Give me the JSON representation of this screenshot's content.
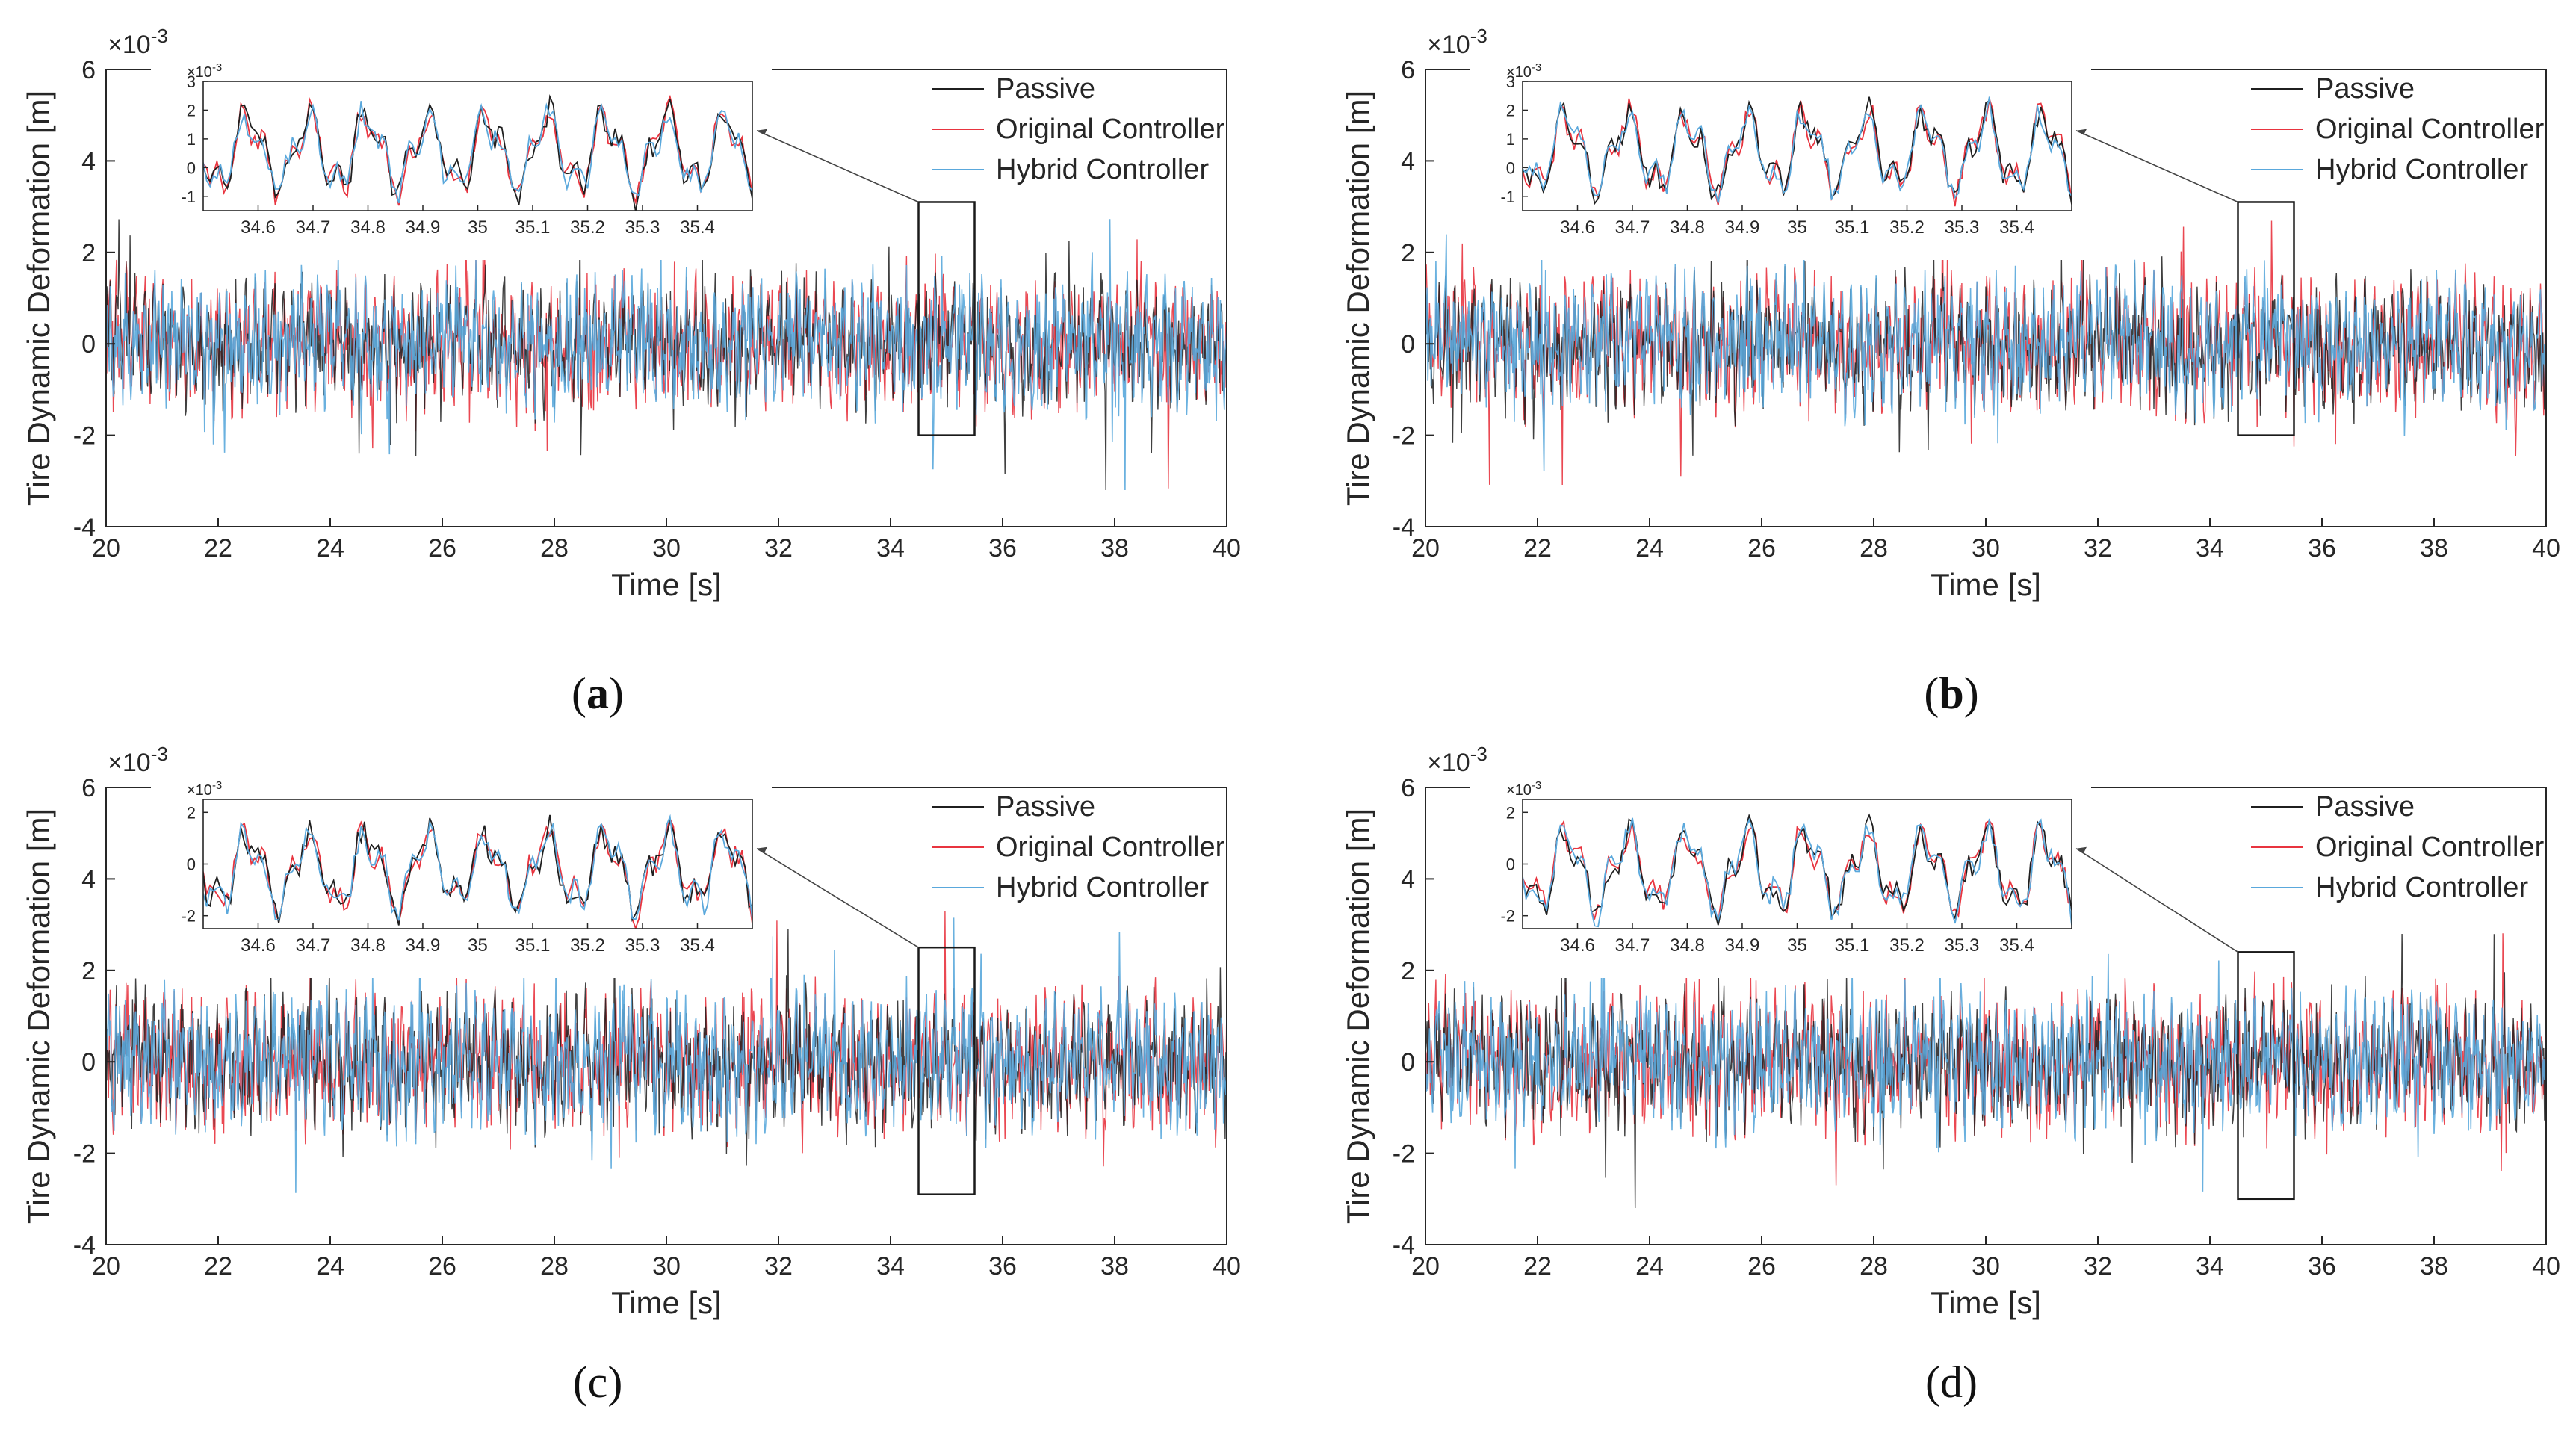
{
  "figure": {
    "panels": [
      {
        "caption_open": "(",
        "caption_letter": "a",
        "caption_close": ")"
      },
      {
        "caption_open": "(",
        "caption_letter": "b",
        "caption_close": ")"
      },
      {
        "caption_open": "(",
        "caption_letter": "c",
        "caption_close": ")"
      },
      {
        "caption_open": "(",
        "caption_letter": "d",
        "caption_close": ")"
      }
    ]
  },
  "colors": {
    "passive": "#1f1f1f",
    "original": "#e8343f",
    "hybrid": "#5aa8dc",
    "axis": "#262626",
    "zoom_box": "#1a1a1a"
  },
  "chart_data": [
    {
      "id": "a",
      "type": "line",
      "title": "",
      "xlabel": "Time [s]",
      "ylabel": "Tire Dynamic Deformation [m]",
      "y_scale_label": "×10-3",
      "xlim": [
        20,
        40
      ],
      "ylim": [
        -4,
        6
      ],
      "xticks": [
        20,
        22,
        24,
        26,
        28,
        30,
        32,
        34,
        36,
        38,
        40
      ],
      "yticks": [
        -4,
        -2,
        0,
        2,
        4,
        6
      ],
      "legend": [
        "Passive",
        "Original Controller",
        "Hybrid Controller"
      ],
      "legend_location": "top-right",
      "series": [
        {
          "name": "Passive",
          "amplitude": 0.75,
          "seed": 11
        },
        {
          "name": "Original Controller",
          "amplitude": 0.85,
          "seed": 12
        },
        {
          "name": "Hybrid Controller",
          "amplitude": 0.8,
          "seed": 13
        }
      ],
      "zoom_region": {
        "x": [
          34.5,
          35.5
        ],
        "y": [
          -2.0,
          3.1
        ]
      },
      "inset": {
        "xlim": [
          34.5,
          35.5
        ],
        "ylim": [
          -1.5,
          3
        ],
        "xticks": [
          34.6,
          34.7,
          34.8,
          34.9,
          35,
          35.1,
          35.2,
          35.3,
          35.4
        ],
        "yticks": [
          -1,
          0,
          1,
          2,
          3
        ],
        "scale_label": "×10-3"
      }
    },
    {
      "id": "b",
      "type": "line",
      "title": "",
      "xlabel": "Time [s]",
      "ylabel": "Tire Dynamic Deformation [m]",
      "y_scale_label": "×10-3",
      "xlim": [
        20,
        40
      ],
      "ylim": [
        -4,
        6
      ],
      "xticks": [
        20,
        22,
        24,
        26,
        28,
        30,
        32,
        34,
        36,
        38,
        40
      ],
      "yticks": [
        -4,
        -2,
        0,
        2,
        4,
        6
      ],
      "legend": [
        "Passive",
        "Original Controller",
        "Hybrid Controller"
      ],
      "legend_location": "top-right",
      "series": [
        {
          "name": "Passive",
          "amplitude": 0.75,
          "seed": 21
        },
        {
          "name": "Original Controller",
          "amplitude": 0.85,
          "seed": 22
        },
        {
          "name": "Hybrid Controller",
          "amplitude": 0.8,
          "seed": 23
        }
      ],
      "zoom_region": {
        "x": [
          34.5,
          35.5
        ],
        "y": [
          -2.0,
          3.1
        ]
      },
      "inset": {
        "xlim": [
          34.5,
          35.5
        ],
        "ylim": [
          -1.5,
          3
        ],
        "xticks": [
          34.6,
          34.7,
          34.8,
          34.9,
          35,
          35.1,
          35.2,
          35.3,
          35.4
        ],
        "yticks": [
          -1,
          0,
          1,
          2,
          3
        ],
        "scale_label": "×10-3"
      }
    },
    {
      "id": "c",
      "type": "line",
      "title": "",
      "xlabel": "Time [s]",
      "ylabel": "Tire Dynamic Deformation [m]",
      "y_scale_label": "×10-3",
      "xlim": [
        20,
        40
      ],
      "ylim": [
        -4,
        6
      ],
      "xticks": [
        20,
        22,
        24,
        26,
        28,
        30,
        32,
        34,
        36,
        38,
        40
      ],
      "yticks": [
        -4,
        -2,
        0,
        2,
        4,
        6
      ],
      "legend": [
        "Passive",
        "Original Controller",
        "Hybrid Controller"
      ],
      "legend_location": "top-right",
      "series": [
        {
          "name": "Passive",
          "amplitude": 0.8,
          "seed": 31
        },
        {
          "name": "Original Controller",
          "amplitude": 0.9,
          "seed": 32
        },
        {
          "name": "Hybrid Controller",
          "amplitude": 0.85,
          "seed": 33
        }
      ],
      "zoom_region": {
        "x": [
          34.5,
          35.5
        ],
        "y": [
          -2.9,
          2.5
        ]
      },
      "inset": {
        "xlim": [
          34.5,
          35.5
        ],
        "ylim": [
          -2.5,
          2.5
        ],
        "xticks": [
          34.6,
          34.7,
          34.8,
          34.9,
          35,
          35.1,
          35.2,
          35.3,
          35.4
        ],
        "yticks": [
          -2,
          0,
          2
        ],
        "scale_label": "×10-3"
      }
    },
    {
      "id": "d",
      "type": "line",
      "title": "",
      "xlabel": "Time [s]",
      "ylabel": "Tire Dynamic Deformation [m]",
      "y_scale_label": "×10-3",
      "xlim": [
        20,
        40
      ],
      "ylim": [
        -4,
        6
      ],
      "xticks": [
        20,
        22,
        24,
        26,
        28,
        30,
        32,
        34,
        36,
        38,
        40
      ],
      "yticks": [
        -4,
        -2,
        0,
        2,
        4,
        6
      ],
      "legend": [
        "Passive",
        "Original Controller",
        "Hybrid Controller"
      ],
      "legend_location": "top-right",
      "series": [
        {
          "name": "Passive",
          "amplitude": 0.78,
          "seed": 41
        },
        {
          "name": "Original Controller",
          "amplitude": 0.88,
          "seed": 42
        },
        {
          "name": "Hybrid Controller",
          "amplitude": 0.83,
          "seed": 43
        }
      ],
      "zoom_region": {
        "x": [
          34.5,
          35.5
        ],
        "y": [
          -3.0,
          2.4
        ]
      },
      "inset": {
        "xlim": [
          34.5,
          35.5
        ],
        "ylim": [
          -2.5,
          2.5
        ],
        "xticks": [
          34.6,
          34.7,
          34.8,
          34.9,
          35,
          35.1,
          35.2,
          35.3,
          35.4
        ],
        "yticks": [
          -2,
          0,
          2
        ],
        "scale_label": "×10-3"
      }
    }
  ]
}
